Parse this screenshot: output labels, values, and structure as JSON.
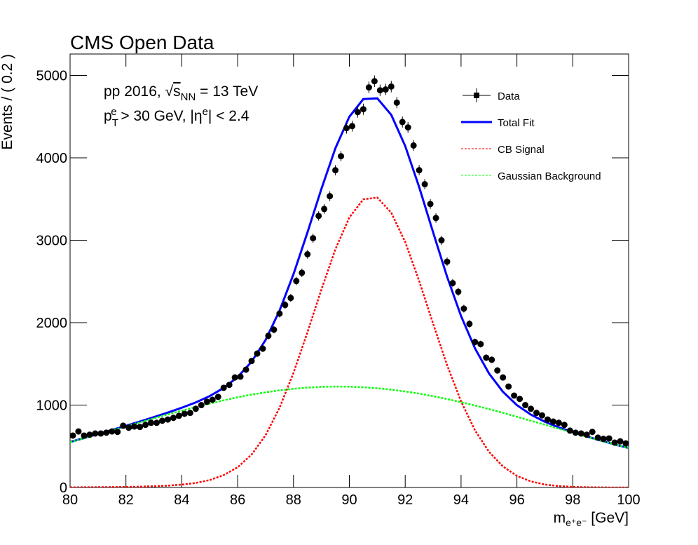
{
  "chart_data": {
    "type": "line",
    "title": "CMS Open Data",
    "xlabel": [
      "m",
      "e⁺e⁻",
      " [GeV]"
    ],
    "ylabel": "Events / ( 0.2 )",
    "annotations": [
      [
        "pp 2016, ",
        "√",
        "s",
        "NN",
        " = 13 TeV"
      ],
      [
        "p",
        "T",
        "e",
        " > 30 GeV, |η",
        "e",
        "| < 2.4"
      ]
    ],
    "xlim": [
      80,
      100
    ],
    "xticks": [
      80,
      82,
      84,
      86,
      88,
      90,
      92,
      94,
      96,
      98,
      100
    ],
    "ylim": [
      0,
      5260
    ],
    "yticks": [
      0,
      1000,
      2000,
      3000,
      4000,
      5000
    ],
    "legend": "top-right",
    "series": [
      {
        "name": "Data",
        "color": "#000000",
        "kind": "points",
        "x": [
          80.1,
          80.3,
          80.5,
          80.7,
          80.9,
          81.1,
          81.3,
          81.5,
          81.7,
          81.9,
          82.1,
          82.3,
          82.5,
          82.7,
          82.9,
          83.1,
          83.3,
          83.5,
          83.7,
          83.9,
          84.1,
          84.3,
          84.5,
          84.7,
          84.9,
          85.1,
          85.3,
          85.5,
          85.7,
          85.9,
          86.1,
          86.3,
          86.5,
          86.7,
          86.9,
          87.1,
          87.3,
          87.5,
          87.7,
          87.9,
          88.1,
          88.3,
          88.5,
          88.7,
          88.9,
          89.1,
          89.3,
          89.5,
          89.7,
          89.9,
          90.1,
          90.3,
          90.5,
          90.7,
          90.9,
          91.1,
          91.3,
          91.5,
          91.7,
          91.9,
          92.1,
          92.3,
          92.5,
          92.7,
          92.9,
          93.1,
          93.3,
          93.5,
          93.7,
          93.9,
          94.1,
          94.3,
          94.5,
          94.7,
          94.9,
          95.1,
          95.3,
          95.5,
          95.7,
          95.9,
          96.1,
          96.3,
          96.5,
          96.7,
          96.9,
          97.1,
          97.3,
          97.5,
          97.7,
          97.9,
          98.1,
          98.3,
          98.5,
          98.7,
          98.9,
          99.1,
          99.3,
          99.5,
          99.7,
          99.9
        ],
        "values": [
          630,
          680,
          630,
          640,
          655,
          655,
          665,
          680,
          675,
          750,
          725,
          740,
          735,
          760,
          785,
          785,
          810,
          825,
          845,
          870,
          895,
          905,
          955,
          1000,
          1040,
          1065,
          1100,
          1210,
          1245,
          1335,
          1345,
          1430,
          1535,
          1625,
          1685,
          1840,
          1915,
          2110,
          2215,
          2300,
          2505,
          2605,
          2830,
          3025,
          3295,
          3380,
          3535,
          3850,
          4020,
          4360,
          4385,
          4555,
          4590,
          4855,
          4930,
          4820,
          4830,
          4865,
          4670,
          4435,
          4370,
          4150,
          3850,
          3680,
          3440,
          3270,
          3000,
          2740,
          2480,
          2375,
          2170,
          1985,
          1765,
          1740,
          1575,
          1550,
          1420,
          1335,
          1225,
          1115,
          1075,
          1000,
          955,
          905,
          875,
          825,
          800,
          785,
          760,
          690,
          665,
          655,
          640,
          675,
          605,
          590,
          595,
          545,
          560,
          535
        ],
        "errors": [
          25,
          26,
          25,
          25,
          26,
          26,
          26,
          26,
          26,
          27,
          27,
          27,
          27,
          28,
          28,
          28,
          28,
          29,
          29,
          29,
          30,
          30,
          31,
          32,
          32,
          33,
          33,
          35,
          35,
          37,
          37,
          38,
          39,
          40,
          41,
          43,
          44,
          46,
          47,
          48,
          50,
          51,
          53,
          55,
          57,
          58,
          59,
          62,
          63,
          66,
          66,
          67,
          68,
          70,
          70,
          69,
          69,
          70,
          68,
          67,
          66,
          64,
          62,
          61,
          59,
          57,
          55,
          52,
          50,
          49,
          47,
          45,
          42,
          42,
          40,
          39,
          38,
          37,
          35,
          33,
          33,
          32,
          31,
          30,
          30,
          29,
          28,
          28,
          28,
          26,
          26,
          26,
          25,
          26,
          25,
          24,
          24,
          23,
          24,
          23
        ]
      },
      {
        "name": "Total Fit",
        "color": "#0000ff",
        "kind": "solid",
        "x": [
          80,
          80.5,
          81,
          81.5,
          82,
          82.5,
          83,
          83.5,
          84,
          84.5,
          85,
          85.5,
          86,
          86.5,
          87,
          87.5,
          88,
          88.5,
          89,
          89.5,
          90,
          90.5,
          91,
          91.5,
          92,
          92.5,
          93,
          93.5,
          94,
          94.5,
          95,
          95.5,
          96,
          96.5,
          97,
          97.5,
          98,
          98.5,
          99,
          99.5,
          100
        ],
        "values": [
          552,
          600,
          649,
          698,
          749,
          801,
          854,
          909,
          968,
          1032,
          1109,
          1208,
          1340,
          1527,
          1789,
          2146,
          2589,
          3095,
          3624,
          4116,
          4499,
          4713,
          4722,
          4522,
          4144,
          3645,
          3095,
          2557,
          2080,
          1688,
          1384,
          1161,
          999,
          884,
          798,
          730,
          671,
          619,
          570,
          523,
          479
        ]
      },
      {
        "name": "CB Signal",
        "color": "#ff0000",
        "kind": "dashed",
        "x": [
          80,
          80.5,
          81,
          81.5,
          82,
          82.5,
          83,
          83.5,
          84,
          84.5,
          85,
          85.5,
          86,
          86.5,
          87,
          87.5,
          88,
          88.5,
          89,
          89.5,
          90,
          90.5,
          91,
          91.5,
          92,
          92.5,
          93,
          93.5,
          94,
          94.5,
          95,
          95.5,
          96,
          96.5,
          97,
          97.5,
          98,
          98.5,
          99,
          99.5,
          100
        ],
        "values": [
          2,
          3,
          4,
          5,
          7,
          10,
          15,
          22,
          35,
          55,
          90,
          150,
          245,
          400,
          634,
          967,
          1391,
          1883,
          2403,
          2891,
          3276,
          3497,
          3518,
          3335,
          2979,
          2506,
          1987,
          1484,
          1045,
          693,
          433,
          255,
          141,
          74,
          36,
          17,
          7,
          3,
          1,
          0,
          0
        ]
      },
      {
        "name": "Gaussian Background",
        "color": "#00ff00",
        "kind": "dashed",
        "x": [
          80,
          80.5,
          81,
          81.5,
          82,
          82.5,
          83,
          83.5,
          84,
          84.5,
          85,
          85.5,
          86,
          86.5,
          87,
          87.5,
          88,
          88.5,
          89,
          89.5,
          90,
          90.5,
          91,
          91.5,
          92,
          92.5,
          93,
          93.5,
          94,
          94.5,
          95,
          95.5,
          96,
          96.5,
          97,
          97.5,
          98,
          98.5,
          99,
          99.5,
          100
        ],
        "values": [
          550,
          597,
          645,
          693,
          742,
          791,
          839,
          887,
          933,
          977,
          1019,
          1058,
          1095,
          1127,
          1155,
          1179,
          1198,
          1212,
          1221,
          1225,
          1223,
          1216,
          1204,
          1187,
          1165,
          1139,
          1108,
          1073,
          1035,
          995,
          951,
          906,
          858,
          810,
          762,
          713,
          664,
          616,
          569,
          523,
          479
        ]
      }
    ]
  }
}
